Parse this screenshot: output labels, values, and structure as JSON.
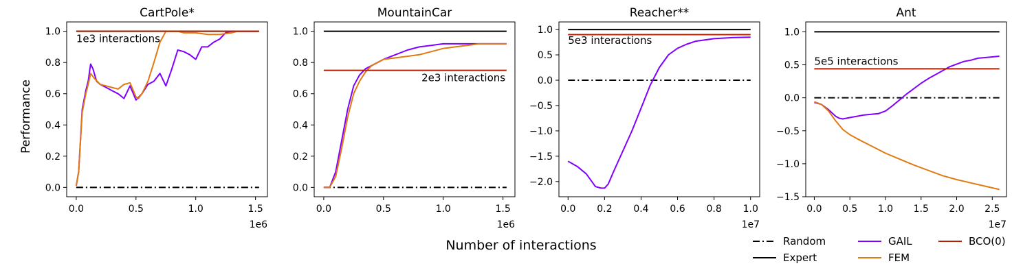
{
  "figure": {
    "shared_xlabel": "Number of interactions",
    "shared_ylabel": "Performance"
  },
  "legend": [
    {
      "name": "Random",
      "style": "dashdot",
      "color": "#000000"
    },
    {
      "name": "Expert",
      "style": "solid",
      "color": "#000000"
    },
    {
      "name": "GAIL",
      "style": "solid",
      "color": "#8000ff"
    },
    {
      "name": "FEM",
      "style": "solid",
      "color": "#e07a10"
    },
    {
      "name": "BCO(0)",
      "style": "solid",
      "color": "#b22000"
    }
  ],
  "chart_data": [
    {
      "type": "line",
      "title": "CartPole*",
      "x_multiplier": "1e6",
      "xlim": [
        -0.08,
        1.6
      ],
      "ylim": [
        -0.06,
        1.06
      ],
      "xticks": [
        0.0,
        0.5,
        1.0,
        1.5
      ],
      "yticks": [
        0.0,
        0.2,
        0.4,
        0.6,
        0.8,
        1.0
      ],
      "ytick_labels": [
        "0.0",
        "0.2",
        "0.4",
        "0.6",
        "0.8",
        "1.0"
      ],
      "xtick_labels": [
        "0.0",
        "0.5",
        "1.0",
        "1.5"
      ],
      "ylabel": "Performance",
      "annotation": {
        "text": "1e3 interactions",
        "x": 0.0,
        "y": 0.93
      },
      "hlines": [
        {
          "name": "Random",
          "y": 0.0,
          "x": [
            0.0,
            1.53
          ]
        },
        {
          "name": "Expert",
          "y": 1.0,
          "x": [
            0.0,
            1.53
          ]
        },
        {
          "name": "BCO(0)",
          "y": 1.0,
          "x": [
            0.0,
            1.53
          ]
        }
      ],
      "series": [
        {
          "name": "GAIL",
          "x": [
            0.0,
            0.02,
            0.05,
            0.08,
            0.1,
            0.12,
            0.14,
            0.17,
            0.2,
            0.25,
            0.3,
            0.35,
            0.4,
            0.45,
            0.5,
            0.55,
            0.6,
            0.65,
            0.7,
            0.75,
            0.8,
            0.85,
            0.9,
            0.95,
            1.0,
            1.05,
            1.1,
            1.15,
            1.2,
            1.25,
            1.3,
            1.35,
            1.4,
            1.5,
            1.52
          ],
          "y": [
            0.01,
            0.1,
            0.5,
            0.62,
            0.68,
            0.79,
            0.76,
            0.68,
            0.66,
            0.64,
            0.62,
            0.6,
            0.57,
            0.65,
            0.56,
            0.6,
            0.66,
            0.68,
            0.73,
            0.65,
            0.76,
            0.88,
            0.87,
            0.85,
            0.82,
            0.9,
            0.9,
            0.93,
            0.95,
            0.99,
            1.0,
            1.0,
            1.0,
            1.0,
            1.0
          ]
        },
        {
          "name": "FEM",
          "x": [
            0.0,
            0.02,
            0.05,
            0.08,
            0.1,
            0.12,
            0.15,
            0.2,
            0.25,
            0.3,
            0.35,
            0.4,
            0.45,
            0.5,
            0.52,
            0.55,
            0.6,
            0.65,
            0.7,
            0.75,
            0.8,
            0.85,
            0.9,
            1.0,
            1.1,
            1.2,
            1.3,
            1.35,
            1.4,
            1.5,
            1.52
          ],
          "y": [
            0.01,
            0.1,
            0.48,
            0.6,
            0.66,
            0.73,
            0.7,
            0.66,
            0.65,
            0.64,
            0.63,
            0.66,
            0.67,
            0.58,
            0.57,
            0.6,
            0.68,
            0.8,
            0.93,
            1.0,
            1.0,
            1.0,
            0.99,
            0.99,
            0.98,
            0.98,
            0.99,
            1.0,
            1.0,
            1.0,
            1.0
          ]
        }
      ]
    },
    {
      "type": "line",
      "title": "MountainCar",
      "x_multiplier": "1e6",
      "xlim": [
        -0.08,
        1.6
      ],
      "ylim": [
        -0.06,
        1.06
      ],
      "xticks": [
        0.0,
        0.5,
        1.0,
        1.5
      ],
      "yticks": [
        0.0,
        0.2,
        0.4,
        0.6,
        0.8,
        1.0
      ],
      "ytick_labels": [
        "0.0",
        "0.2",
        "0.4",
        "0.6",
        "0.8",
        "1.0"
      ],
      "xtick_labels": [
        "0.0",
        "0.5",
        "1.0",
        "1.5"
      ],
      "annotation": {
        "text": "2e3 interactions",
        "x": 1.52,
        "y": 0.68,
        "align": "end"
      },
      "hlines": [
        {
          "name": "Random",
          "y": 0.0,
          "x": [
            0.0,
            1.53
          ]
        },
        {
          "name": "Expert",
          "y": 1.0,
          "x": [
            0.0,
            1.53
          ]
        },
        {
          "name": "BCO(0)",
          "y": 0.75,
          "x": [
            0.0,
            1.53
          ]
        }
      ],
      "series": [
        {
          "name": "GAIL",
          "x": [
            0.0,
            0.05,
            0.1,
            0.15,
            0.2,
            0.25,
            0.3,
            0.35,
            0.4,
            0.5,
            0.6,
            0.7,
            0.8,
            0.9,
            1.0,
            1.1,
            1.2,
            1.3,
            1.4,
            1.5,
            1.53
          ],
          "y": [
            0.0,
            0.0,
            0.1,
            0.3,
            0.5,
            0.65,
            0.72,
            0.76,
            0.78,
            0.82,
            0.85,
            0.88,
            0.9,
            0.91,
            0.92,
            0.92,
            0.92,
            0.92,
            0.92,
            0.92,
            0.92
          ]
        },
        {
          "name": "FEM",
          "x": [
            0.0,
            0.05,
            0.1,
            0.15,
            0.2,
            0.25,
            0.3,
            0.35,
            0.4,
            0.5,
            0.6,
            0.7,
            0.8,
            0.9,
            1.0,
            1.1,
            1.2,
            1.3,
            1.4,
            1.5,
            1.53
          ],
          "y": [
            0.0,
            0.0,
            0.07,
            0.25,
            0.45,
            0.6,
            0.68,
            0.74,
            0.78,
            0.82,
            0.83,
            0.84,
            0.85,
            0.87,
            0.89,
            0.9,
            0.91,
            0.92,
            0.92,
            0.92,
            0.92
          ]
        }
      ]
    },
    {
      "type": "line",
      "title": "Reacher**",
      "x_multiplier": "1e7",
      "xlim": [
        -0.05,
        1.05
      ],
      "ylim": [
        -2.3,
        1.15
      ],
      "xticks": [
        0.0,
        0.2,
        0.4,
        0.6,
        0.8,
        1.0
      ],
      "yticks": [
        -2.0,
        -1.5,
        -1.0,
        -0.5,
        0.0,
        0.5,
        1.0
      ],
      "ytick_labels": [
        "−2.0",
        "−1.5",
        "−1.0",
        "−0.5",
        "0.0",
        "0.5",
        "1.0"
      ],
      "xtick_labels": [
        "0.0",
        "0.2",
        "0.4",
        "0.6",
        "0.8",
        "1.0"
      ],
      "annotation": {
        "text": "5e3 interactions",
        "x": 0.0,
        "y": 0.72
      },
      "hlines": [
        {
          "name": "Random",
          "y": 0.0,
          "x": [
            0.0,
            1.0
          ]
        },
        {
          "name": "Expert",
          "y": 1.0,
          "x": [
            0.0,
            1.0
          ]
        },
        {
          "name": "BCO(0)",
          "y": 0.9,
          "x": [
            0.0,
            1.0
          ]
        }
      ],
      "series": [
        {
          "name": "GAIL",
          "x": [
            0.0,
            0.05,
            0.1,
            0.15,
            0.18,
            0.2,
            0.22,
            0.25,
            0.3,
            0.35,
            0.4,
            0.45,
            0.5,
            0.55,
            0.6,
            0.65,
            0.7,
            0.8,
            0.9,
            1.0
          ],
          "y": [
            -1.6,
            -1.7,
            -1.85,
            -2.1,
            -2.13,
            -2.13,
            -2.05,
            -1.8,
            -1.4,
            -1.0,
            -0.55,
            -0.1,
            0.25,
            0.5,
            0.63,
            0.71,
            0.77,
            0.82,
            0.84,
            0.85
          ]
        }
      ]
    },
    {
      "type": "line",
      "title": "Ant",
      "x_multiplier": "1e7",
      "xlim": [
        -0.12,
        2.7
      ],
      "ylim": [
        -1.5,
        1.15
      ],
      "xticks": [
        0.0,
        0.5,
        1.0,
        1.5,
        2.0,
        2.5
      ],
      "yticks": [
        -1.5,
        -1.0,
        -0.5,
        0.0,
        0.5,
        1.0
      ],
      "ytick_labels": [
        "−1.5",
        "−1.0",
        "−0.5",
        "0.0",
        "0.5",
        "1.0"
      ],
      "xtick_labels": [
        "0.0",
        "0.5",
        "1.0",
        "1.5",
        "2.0",
        "2.5"
      ],
      "annotation": {
        "text": "5e5 interactions",
        "x": 0.0,
        "y": 0.5
      },
      "hlines": [
        {
          "name": "Random",
          "y": 0.0,
          "x": [
            0.0,
            2.6
          ]
        },
        {
          "name": "Expert",
          "y": 1.0,
          "x": [
            0.0,
            2.6
          ]
        },
        {
          "name": "BCO(0)",
          "y": 0.44,
          "x": [
            0.0,
            2.6
          ]
        }
      ],
      "series": [
        {
          "name": "GAIL",
          "x": [
            0.0,
            0.1,
            0.2,
            0.3,
            0.35,
            0.4,
            0.5,
            0.6,
            0.7,
            0.8,
            0.9,
            1.0,
            1.1,
            1.2,
            1.3,
            1.4,
            1.5,
            1.6,
            1.7,
            1.8,
            1.9,
            2.0,
            2.1,
            2.2,
            2.3,
            2.4,
            2.5,
            2.6
          ],
          "y": [
            -0.07,
            -0.1,
            -0.18,
            -0.28,
            -0.31,
            -0.32,
            -0.3,
            -0.28,
            -0.26,
            -0.25,
            -0.24,
            -0.2,
            -0.12,
            -0.03,
            0.06,
            0.14,
            0.22,
            0.29,
            0.35,
            0.41,
            0.47,
            0.51,
            0.55,
            0.57,
            0.6,
            0.61,
            0.62,
            0.63
          ]
        },
        {
          "name": "FEM",
          "x": [
            0.0,
            0.1,
            0.2,
            0.3,
            0.4,
            0.5,
            0.6,
            0.8,
            1.0,
            1.2,
            1.4,
            1.6,
            1.8,
            2.0,
            2.2,
            2.4,
            2.6
          ],
          "y": [
            -0.06,
            -0.1,
            -0.2,
            -0.35,
            -0.48,
            -0.56,
            -0.62,
            -0.73,
            -0.84,
            -0.93,
            -1.02,
            -1.1,
            -1.18,
            -1.24,
            -1.29,
            -1.34,
            -1.39
          ]
        }
      ]
    }
  ]
}
